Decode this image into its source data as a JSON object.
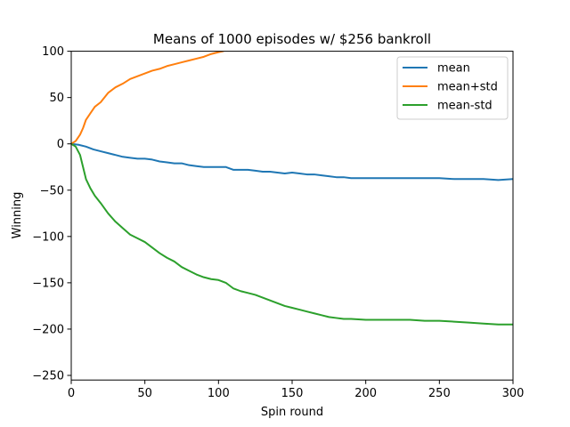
{
  "chart_data": {
    "type": "line",
    "title": "Means of 1000 episodes w/ $256 bankroll",
    "xlabel": "Spin round",
    "ylabel": "Winning",
    "xlim": [
      0,
      300
    ],
    "ylim": [
      -255,
      100
    ],
    "x_ticks": [
      0,
      50,
      100,
      150,
      200,
      250,
      300
    ],
    "x_tick_labels": [
      "0",
      "50",
      "100",
      "150",
      "200",
      "250",
      "300"
    ],
    "y_ticks": [
      -250,
      -200,
      -150,
      -100,
      -50,
      0,
      50,
      100
    ],
    "y_tick_labels": [
      "−250",
      "−200",
      "−150",
      "−100",
      "−50",
      "0",
      "50",
      "100"
    ],
    "grid": false,
    "legend_position": "top-right",
    "series": [
      {
        "name": "mean",
        "color": "#1f77b4",
        "points": [
          [
            0,
            0
          ],
          [
            5,
            -1
          ],
          [
            10,
            -3
          ],
          [
            15,
            -6
          ],
          [
            20,
            -8
          ],
          [
            25,
            -10
          ],
          [
            30,
            -12
          ],
          [
            35,
            -14
          ],
          [
            40,
            -15
          ],
          [
            45,
            -16
          ],
          [
            50,
            -16
          ],
          [
            55,
            -17
          ],
          [
            60,
            -19
          ],
          [
            65,
            -20
          ],
          [
            70,
            -21
          ],
          [
            75,
            -21
          ],
          [
            80,
            -23
          ],
          [
            85,
            -24
          ],
          [
            90,
            -25
          ],
          [
            95,
            -25
          ],
          [
            100,
            -25
          ],
          [
            105,
            -25
          ],
          [
            110,
            -28
          ],
          [
            115,
            -28
          ],
          [
            120,
            -28
          ],
          [
            125,
            -29
          ],
          [
            130,
            -30
          ],
          [
            135,
            -30
          ],
          [
            140,
            -31
          ],
          [
            145,
            -32
          ],
          [
            150,
            -31
          ],
          [
            155,
            -32
          ],
          [
            160,
            -33
          ],
          [
            165,
            -33
          ],
          [
            170,
            -34
          ],
          [
            175,
            -35
          ],
          [
            180,
            -36
          ],
          [
            185,
            -36
          ],
          [
            190,
            -37
          ],
          [
            195,
            -37
          ],
          [
            200,
            -37
          ],
          [
            210,
            -37
          ],
          [
            220,
            -37
          ],
          [
            230,
            -37
          ],
          [
            240,
            -37
          ],
          [
            250,
            -37
          ],
          [
            260,
            -38
          ],
          [
            270,
            -38
          ],
          [
            280,
            -38
          ],
          [
            290,
            -39
          ],
          [
            300,
            -38
          ]
        ]
      },
      {
        "name": "mean+std",
        "color": "#ff7f0e",
        "points": [
          [
            0,
            0
          ],
          [
            3,
            3
          ],
          [
            6,
            10
          ],
          [
            8,
            17
          ],
          [
            10,
            26
          ],
          [
            13,
            33
          ],
          [
            16,
            40
          ],
          [
            20,
            45
          ],
          [
            25,
            55
          ],
          [
            30,
            61
          ],
          [
            35,
            65
          ],
          [
            40,
            70
          ],
          [
            45,
            73
          ],
          [
            50,
            76
          ],
          [
            55,
            79
          ],
          [
            60,
            81
          ],
          [
            65,
            84
          ],
          [
            70,
            86
          ],
          [
            75,
            88
          ],
          [
            80,
            90
          ],
          [
            85,
            92
          ],
          [
            90,
            94
          ],
          [
            95,
            97
          ],
          [
            100,
            99
          ],
          [
            103,
            100
          ]
        ]
      },
      {
        "name": "mean-std",
        "color": "#2ca02c",
        "points": [
          [
            0,
            0
          ],
          [
            3,
            -3
          ],
          [
            6,
            -12
          ],
          [
            8,
            -25
          ],
          [
            10,
            -38
          ],
          [
            13,
            -48
          ],
          [
            16,
            -56
          ],
          [
            20,
            -64
          ],
          [
            25,
            -75
          ],
          [
            30,
            -84
          ],
          [
            35,
            -91
          ],
          [
            40,
            -98
          ],
          [
            45,
            -102
          ],
          [
            50,
            -106
          ],
          [
            55,
            -112
          ],
          [
            60,
            -118
          ],
          [
            65,
            -123
          ],
          [
            70,
            -127
          ],
          [
            75,
            -133
          ],
          [
            80,
            -137
          ],
          [
            85,
            -141
          ],
          [
            90,
            -144
          ],
          [
            95,
            -146
          ],
          [
            100,
            -147
          ],
          [
            105,
            -150
          ],
          [
            110,
            -156
          ],
          [
            115,
            -159
          ],
          [
            120,
            -161
          ],
          [
            125,
            -163
          ],
          [
            130,
            -166
          ],
          [
            135,
            -169
          ],
          [
            140,
            -172
          ],
          [
            145,
            -175
          ],
          [
            150,
            -177
          ],
          [
            155,
            -179
          ],
          [
            160,
            -181
          ],
          [
            165,
            -183
          ],
          [
            170,
            -185
          ],
          [
            175,
            -187
          ],
          [
            180,
            -188
          ],
          [
            185,
            -189
          ],
          [
            190,
            -189
          ],
          [
            200,
            -190
          ],
          [
            210,
            -190
          ],
          [
            220,
            -190
          ],
          [
            230,
            -190
          ],
          [
            240,
            -191
          ],
          [
            250,
            -191
          ],
          [
            260,
            -192
          ],
          [
            270,
            -193
          ],
          [
            280,
            -194
          ],
          [
            290,
            -195
          ],
          [
            300,
            -195
          ]
        ]
      }
    ]
  }
}
